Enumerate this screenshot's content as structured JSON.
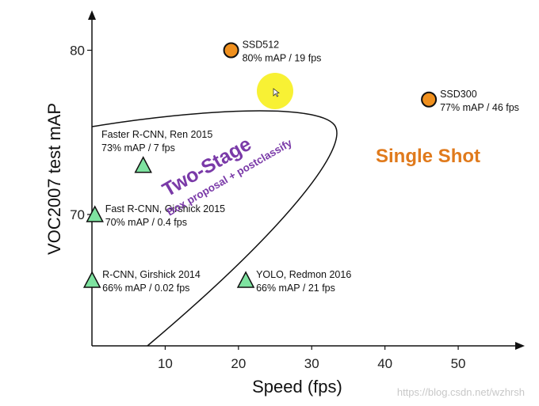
{
  "chart_data": {
    "type": "scatter",
    "xlabel": "Speed (fps)",
    "ylabel": "VOC2007 test mAP",
    "xlim": [
      0,
      58
    ],
    "ylim": [
      62,
      82
    ],
    "xticks": [
      10,
      20,
      30,
      40,
      50
    ],
    "yticks": [
      70,
      80
    ],
    "grid": false,
    "series": [
      {
        "marker": "triangle",
        "color": "#7ee3a0",
        "points": [
          {
            "x": 7,
            "y": 73,
            "name": "Faster R-CNN, Ren 2015",
            "detail": "73% mAP / 7 fps"
          },
          {
            "x": 0.4,
            "y": 70,
            "name": "Fast R-CNN, Girshick 2015",
            "detail": "70% mAP / 0.4 fps"
          },
          {
            "x": 0.02,
            "y": 66,
            "name": "R-CNN, Girshick 2014",
            "detail": "66% mAP / 0.02 fps"
          },
          {
            "x": 21,
            "y": 66,
            "name": "YOLO, Redmon 2016",
            "detail": "66% mAP / 21 fps"
          }
        ]
      },
      {
        "marker": "circle",
        "color": "#f0901e",
        "points": [
          {
            "x": 19,
            "y": 80,
            "name": "SSD512",
            "detail": "80% mAP / 19 fps"
          },
          {
            "x": 46,
            "y": 77,
            "name": "SSD300",
            "detail": "77% mAP / 46 fps"
          }
        ]
      }
    ],
    "annotations": {
      "two_stage_title": "Two-Stage",
      "two_stage_subtitle": "Box proposal + postclassify",
      "single_shot": "Single Shot"
    },
    "colors": {
      "two_stage": "#7a3aa8",
      "single_shot": "#e07a1c",
      "cursor_highlight": "#f7ef1e"
    }
  },
  "watermark": "https://blog.csdn.net/wzhrsh"
}
